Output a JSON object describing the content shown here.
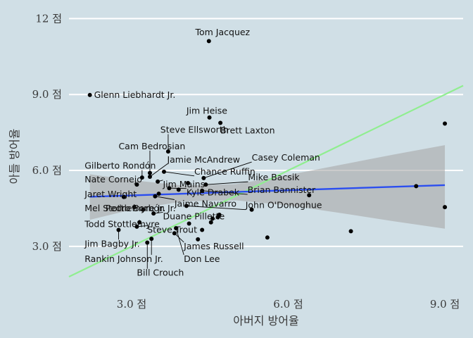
{
  "chart_data": {
    "type": "scatter",
    "xlabel": "아버지 방어율",
    "ylabel": "아들 방어율",
    "xlim": [
      1.8,
      9.35
    ],
    "ylim": [
      1.3,
      12.4
    ],
    "x_ticks": [
      {
        "value": 3.0,
        "label": "3.0 점"
      },
      {
        "value": 6.0,
        "label": "6.0 점"
      },
      {
        "value": 9.0,
        "label": "9.0 점"
      }
    ],
    "y_ticks": [
      {
        "value": 3.0,
        "label": "3.0 점"
      },
      {
        "value": 6.0,
        "label": "6.0 점"
      },
      {
        "value": 9.0,
        "label": "9.0 점"
      },
      {
        "value": 12.0,
        "label": "12 점"
      }
    ],
    "grid": true,
    "reference_line": {
      "slope": 1,
      "intercept": 0,
      "color": "#90ee90"
    },
    "regression": {
      "color": "#2b4ef0",
      "x_start": 2.2,
      "x_end": 9.0,
      "y_start": 4.96,
      "y_end": 5.42,
      "band_color": "#a9a9a9",
      "band": [
        {
          "x": 2.2,
          "lower": 4.05,
          "upper": 5.85
        },
        {
          "x": 3.0,
          "lower": 4.45,
          "upper": 5.62
        },
        {
          "x": 4.0,
          "lower": 4.78,
          "upper": 5.4
        },
        {
          "x": 5.0,
          "lower": 4.82,
          "upper": 5.46
        },
        {
          "x": 6.0,
          "lower": 4.62,
          "upper": 5.82
        },
        {
          "x": 7.0,
          "lower": 4.32,
          "upper": 6.22
        },
        {
          "x": 8.0,
          "lower": 4.0,
          "upper": 6.62
        },
        {
          "x": 9.0,
          "lower": 3.7,
          "upper": 7.0
        }
      ]
    },
    "points": [
      {
        "x": 4.48,
        "y": 11.11,
        "label": "Tom Jacquez",
        "lx": 4.22,
        "ly": 11.46,
        "leader": false
      },
      {
        "x": 2.2,
        "y": 8.98,
        "label": "Glenn Liebhardt Jr.",
        "lx": 2.28,
        "ly": 8.98,
        "leader": false
      },
      {
        "x": 4.49,
        "y": 8.09,
        "label": "Jim Heise",
        "lx": 4.05,
        "ly": 8.35,
        "leader": false
      },
      {
        "x": 4.7,
        "y": 7.88,
        "label": "Brett Laxton",
        "lx": 4.7,
        "ly": 7.58,
        "leader": false
      },
      {
        "x": 3.7,
        "y": 6.75,
        "label": "Steve Ellsworth",
        "lx": 3.55,
        "ly": 7.6,
        "leader": true
      },
      {
        "x": 3.35,
        "y": 5.9,
        "label": "Cam Bedrosian",
        "lx": 2.75,
        "ly": 6.95,
        "leader": true
      },
      {
        "x": 3.35,
        "y": 5.75,
        "label": "Jamie McAndrew",
        "lx": 3.68,
        "ly": 6.42,
        "leader": true
      },
      {
        "x": 4.38,
        "y": 5.7,
        "label": "Casey Coleman",
        "lx": 5.3,
        "ly": 6.5,
        "leader": true
      },
      {
        "x": 3.62,
        "y": 5.95,
        "label": "Chance Ruffin",
        "lx": 4.2,
        "ly": 5.95,
        "leader": true
      },
      {
        "x": 3.2,
        "y": 5.72,
        "label": "Gilberto Rondón",
        "lx": 2.1,
        "ly": 6.18,
        "leader": true
      },
      {
        "x": 4.42,
        "y": 5.44,
        "label": "Mike Bacsik",
        "lx": 5.23,
        "ly": 5.72,
        "leader": true
      },
      {
        "x": 3.1,
        "y": 5.44,
        "label": "Nate Cornejo",
        "lx": 2.1,
        "ly": 5.64,
        "leader": true
      },
      {
        "x": 3.5,
        "y": 5.56,
        "label": "Jim Mains",
        "lx": 3.6,
        "ly": 5.45,
        "leader": true
      },
      {
        "x": 4.35,
        "y": 5.2,
        "label": "Brian Bannister",
        "lx": 5.22,
        "ly": 5.22,
        "leader": true
      },
      {
        "x": 3.72,
        "y": 5.3,
        "label": "Kyle Drabek",
        "lx": 4.05,
        "ly": 5.12,
        "leader": true
      },
      {
        "x": 2.85,
        "y": 4.95,
        "label": "Jaret Wright",
        "lx": 2.1,
        "ly": 5.05,
        "leader": true
      },
      {
        "x": 3.45,
        "y": 4.98,
        "label": "Jaime Navarro",
        "lx": 3.82,
        "ly": 4.68,
        "leader": true
      },
      {
        "x": 4.05,
        "y": 4.6,
        "label": "John O'Donoghue",
        "lx": 5.18,
        "ly": 4.62,
        "leader": true
      },
      {
        "x": 3.05,
        "y": 4.55,
        "label": "Mel Stottlemyre Jr.",
        "lx": 2.1,
        "ly": 4.5,
        "leader": true
      },
      {
        "x": 3.22,
        "y": 4.45,
        "label": "Pedro Borbón Jr.",
        "lx": 2.5,
        "ly": 4.5,
        "leader": true
      },
      {
        "x": 3.42,
        "y": 4.3,
        "label": "Duane Pillette",
        "lx": 3.6,
        "ly": 4.18,
        "leader": true
      },
      {
        "x": 3.15,
        "y": 3.95,
        "label": "Todd Stottlemyre",
        "lx": 2.1,
        "ly": 3.88,
        "leader": true
      },
      {
        "x": 3.1,
        "y": 3.78,
        "label": "Steve Trout",
        "lx": 3.3,
        "ly": 3.65,
        "leader": true
      },
      {
        "x": 2.75,
        "y": 3.65,
        "label": "Jim Bagby Jr.",
        "lx": 2.1,
        "ly": 3.1,
        "leader": true
      },
      {
        "x": 3.82,
        "y": 3.52,
        "label": "James Russell",
        "lx": 4.0,
        "ly": 3.0,
        "leader": true
      },
      {
        "x": 3.38,
        "y": 3.3,
        "label": "Rankin Johnson Jr.",
        "lx": 2.1,
        "ly": 2.5,
        "leader": true
      },
      {
        "x": 3.85,
        "y": 3.72,
        "label": "Don Lee",
        "lx": 4.0,
        "ly": 2.5,
        "leader": true
      },
      {
        "x": 3.3,
        "y": 3.15,
        "label": "Bill Crouch",
        "lx": 3.1,
        "ly": 1.95,
        "leader": true
      },
      {
        "x": 4.08,
        "y": 5.5
      },
      {
        "x": 3.52,
        "y": 5.08
      },
      {
        "x": 3.9,
        "y": 5.24
      },
      {
        "x": 4.1,
        "y": 3.9
      },
      {
        "x": 4.27,
        "y": 3.28
      },
      {
        "x": 4.35,
        "y": 3.65
      },
      {
        "x": 4.52,
        "y": 3.95
      },
      {
        "x": 4.55,
        "y": 4.1
      },
      {
        "x": 4.65,
        "y": 4.15
      },
      {
        "x": 4.68,
        "y": 4.25
      },
      {
        "x": 5.3,
        "y": 4.45
      },
      {
        "x": 5.6,
        "y": 3.35
      },
      {
        "x": 6.4,
        "y": 5.02
      },
      {
        "x": 7.2,
        "y": 3.6
      },
      {
        "x": 8.45,
        "y": 5.38
      },
      {
        "x": 9.0,
        "y": 7.85
      },
      {
        "x": 9.0,
        "y": 4.55
      }
    ]
  }
}
